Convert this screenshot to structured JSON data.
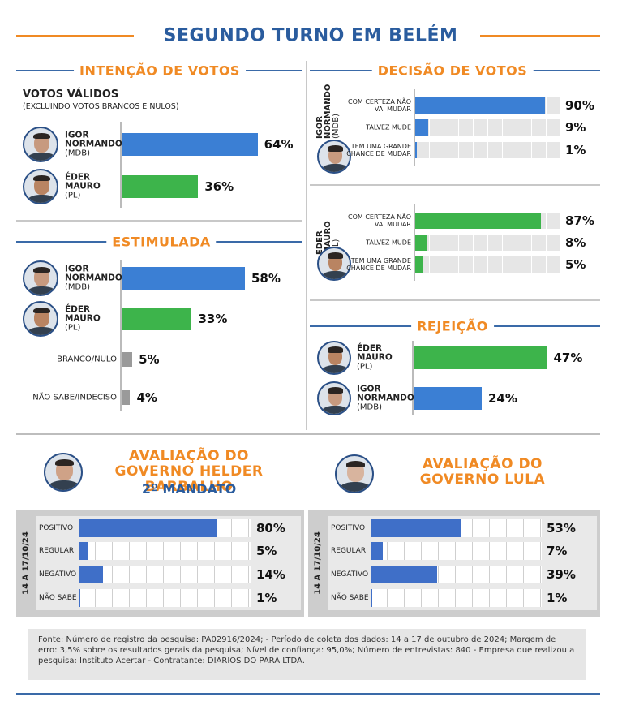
{
  "title": "SEGUNDO TURNO EM BELÉM",
  "chart_data": [
    {
      "type": "bar",
      "orientation": "horizontal",
      "title": "INTENÇÃO DE VOTOS",
      "subtitle": "VOTOS VÁLIDOS",
      "note": "(EXCLUINDO VOTOS BRANCOS E NULOS)",
      "categories": [
        "IGOR NORMANDO",
        "ÉDER MAURO"
      ],
      "parties": [
        "(MDB)",
        "(PL)"
      ],
      "values": [
        64,
        36
      ],
      "value_labels": [
        "64%",
        "36%"
      ],
      "colors": [
        "#3b7fd4",
        "#3db44b"
      ],
      "xlim": [
        0,
        100
      ]
    },
    {
      "type": "bar",
      "orientation": "horizontal",
      "title": "ESTIMULADA",
      "categories": [
        "IGOR NORMANDO",
        "ÉDER MAURO",
        "BRANCO/NULO",
        "NÃO SABE/INDECISO"
      ],
      "parties": [
        "(MDB)",
        "(PL)",
        null,
        null
      ],
      "values": [
        58,
        33,
        5,
        4
      ],
      "value_labels": [
        "58%",
        "33%",
        "5%",
        "4%"
      ],
      "colors": [
        "#3b7fd4",
        "#3db44b",
        "#9a9a9a",
        "#9a9a9a"
      ],
      "xlim": [
        0,
        100
      ]
    },
    {
      "type": "bar",
      "orientation": "horizontal",
      "title": "DECISÃO DE VOTOS",
      "categories": [
        "COM CERTEZA NÃO VAI MUDAR",
        "TALVEZ MUDE",
        "TEM UMA GRANDE CHANCE DE MUDAR"
      ],
      "series": [
        {
          "name": "IGOR NORMANDO",
          "party": "(MDB)",
          "color": "#3b7fd4",
          "values": [
            90,
            9,
            1
          ],
          "value_labels": [
            "90%",
            "9%",
            "1%"
          ]
        },
        {
          "name": "ÉDER MAURO",
          "party": "(PL)",
          "color": "#3db44b",
          "values": [
            87,
            8,
            5
          ],
          "value_labels": [
            "87%",
            "8%",
            "5%"
          ]
        }
      ],
      "xlim": [
        0,
        100
      ]
    },
    {
      "type": "bar",
      "orientation": "horizontal",
      "title": "REJEIÇÃO",
      "categories": [
        "ÉDER MAURO",
        "IGOR NORMANDO"
      ],
      "parties": [
        "(PL)",
        "(MDB)"
      ],
      "values": [
        47,
        24
      ],
      "value_labels": [
        "47%",
        "24%"
      ],
      "colors": [
        "#3db44b",
        "#3b7fd4"
      ],
      "xlim": [
        0,
        100
      ]
    },
    {
      "type": "bar",
      "orientation": "horizontal",
      "title": "AVALIAÇÃO DO GOVERNO HELDER BARBALHO",
      "subtitle": "2º MANDATO",
      "period": "14 A 17/10/24",
      "categories": [
        "POSITIVO",
        "REGULAR",
        "NEGATIVO",
        "NÃO SABE"
      ],
      "values": [
        80,
        5,
        14,
        1
      ],
      "value_labels": [
        "80%",
        "5%",
        "14%",
        "1%"
      ],
      "color": "#3f6fc8",
      "xlim": [
        0,
        100
      ]
    },
    {
      "type": "bar",
      "orientation": "horizontal",
      "title": "AVALIAÇÃO DO GOVERNO LULA",
      "period": "14 A 17/10/24",
      "categories": [
        "POSITIVO",
        "REGULAR",
        "NEGATIVO",
        "NÃO SABE"
      ],
      "values": [
        53,
        7,
        39,
        1
      ],
      "value_labels": [
        "53%",
        "7%",
        "39%",
        "1%"
      ],
      "color": "#3f6fc8",
      "xlim": [
        0,
        100
      ]
    }
  ],
  "footer": "Fonte: Número de registro da pesquisa: PA02916/2024; - Período de coleta dos dados: 14 a 17 de outubro de 2024; Margem de erro: 3,5% sobre os resultados gerais da pesquisa; Nível de confiança: 95,0%; Número de entrevistas: 840 - Empresa que realizou a pesquisa: Instituto Acertar - Contratante: DIARIOS DO PARA LTDA."
}
